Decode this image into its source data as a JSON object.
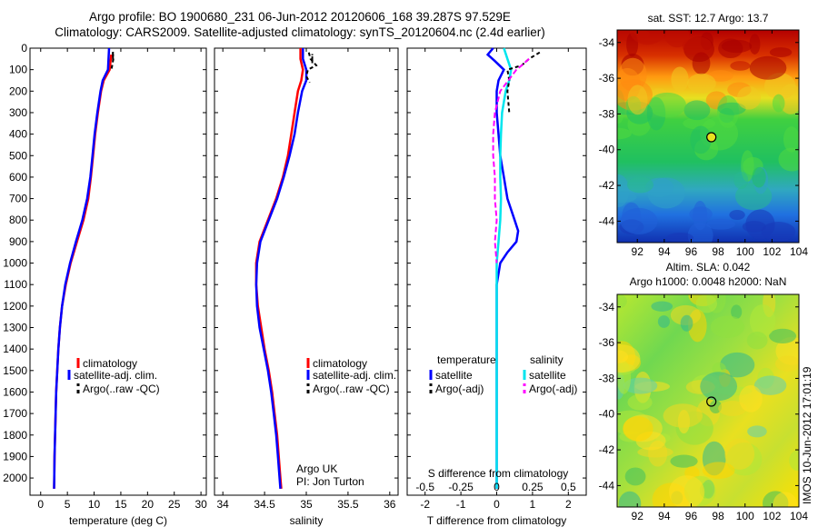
{
  "header": {
    "title_line1": "Argo profile: BO 1900680_231 06-Jun-2012 20120606_168 39.287S 97.529E",
    "title_line2": "Climatology: CARS2009. Satellite-adjusted climatology: synTS_20120604.nc (2.4d earlier)"
  },
  "timestamp": "IMOS 10-Jun-2012 17:01:19",
  "chart_data": [
    {
      "type": "line",
      "xlabel": "temperature (deg C)",
      "ylabel": "",
      "xlim": [
        -2,
        31
      ],
      "ylim": [
        2080,
        0
      ],
      "xticks": [
        0,
        5,
        10,
        15,
        20,
        25,
        30
      ],
      "yticks": [
        0,
        100,
        200,
        300,
        400,
        500,
        600,
        700,
        800,
        900,
        1000,
        1100,
        1200,
        1300,
        1400,
        1500,
        1600,
        1700,
        1800,
        1900,
        2000
      ],
      "legend": [
        "climatology",
        "satellite-adj. clim.",
        "Argo(..raw -QC)"
      ],
      "legend_placement": "lower-right",
      "series": [
        {
          "name": "climatology",
          "color": "#ff0000",
          "dash": "",
          "y": [
            30,
            100,
            150,
            200,
            300,
            400,
            500,
            600,
            700,
            800,
            900,
            1000,
            1100,
            1200,
            1300,
            1400,
            1500,
            1600,
            1700,
            1800,
            1900,
            2000,
            2050
          ],
          "x": [
            13.2,
            12.9,
            11.8,
            11.3,
            10.7,
            10.2,
            9.8,
            9.4,
            8.9,
            8.0,
            6.8,
            5.6,
            4.7,
            4.0,
            3.6,
            3.3,
            3.1,
            2.9,
            2.8,
            2.7,
            2.6,
            2.55,
            2.5
          ]
        },
        {
          "name": "satellite-adj. clim.",
          "color": "#0000ff",
          "dash": "",
          "y": [
            0,
            100,
            150,
            200,
            300,
            400,
            500,
            600,
            700,
            800,
            900,
            1000,
            1100,
            1200,
            1300,
            1400,
            1500,
            1600,
            1700,
            1800,
            1900,
            2000,
            2050
          ],
          "x": [
            12.8,
            12.6,
            11.6,
            11.2,
            10.6,
            10.1,
            9.7,
            9.3,
            8.7,
            7.8,
            6.6,
            5.5,
            4.6,
            4.0,
            3.6,
            3.3,
            3.1,
            2.9,
            2.8,
            2.7,
            2.6,
            2.55,
            2.5
          ]
        },
        {
          "name": "Argo(..raw -QC)",
          "color": "#000000",
          "dash": "4,3",
          "y": [
            20,
            50,
            80,
            100
          ],
          "x": [
            13.5,
            13.6,
            13.4,
            13.2
          ]
        }
      ]
    },
    {
      "type": "line",
      "xlabel": "salinity",
      "ylabel": "",
      "xlim": [
        33.9,
        36.1
      ],
      "ylim": [
        2080,
        0
      ],
      "xticks": [
        34,
        34.5,
        35,
        35.5,
        36
      ],
      "xtick_labels": [
        "34",
        "34.5",
        "35",
        "35.5",
        "36"
      ],
      "legend": [
        "climatology",
        "satellite-adj. clim.",
        "Argo(..raw -QC)"
      ],
      "legend_placement": "lower-right",
      "annotation": [
        "Argo UK",
        "PI: Jon Turton"
      ],
      "series": [
        {
          "name": "climatology",
          "color": "#ff0000",
          "dash": "",
          "y": [
            0,
            50,
            100,
            150,
            200,
            300,
            400,
            500,
            600,
            700,
            800,
            900,
            1000,
            1100,
            1200,
            1300,
            1400,
            1500,
            1600,
            1700,
            1800,
            1900,
            2000,
            2050
          ],
          "x": [
            34.93,
            34.93,
            34.96,
            34.94,
            34.9,
            34.86,
            34.82,
            34.78,
            34.72,
            34.64,
            34.54,
            34.44,
            34.4,
            34.4,
            34.42,
            34.46,
            34.5,
            34.55,
            34.59,
            34.62,
            34.65,
            34.67,
            34.69,
            34.7
          ]
        },
        {
          "name": "satellite-adj. clim.",
          "color": "#0000ff",
          "dash": "",
          "y": [
            0,
            50,
            100,
            150,
            200,
            300,
            400,
            500,
            600,
            700,
            800,
            900,
            1000,
            1100,
            1200,
            1300,
            1400,
            1500,
            1600,
            1700,
            1800,
            1900,
            2000,
            2050
          ],
          "x": [
            34.96,
            34.96,
            35.0,
            35.0,
            34.95,
            34.9,
            34.86,
            34.8,
            34.73,
            34.65,
            34.55,
            34.45,
            34.41,
            34.4,
            34.41,
            34.44,
            34.49,
            34.54,
            34.58,
            34.61,
            34.64,
            34.66,
            34.68,
            34.69
          ]
        },
        {
          "name": "Argo(..raw -QC)",
          "color": "#000000",
          "dash": "4,3",
          "y": [
            20,
            50,
            80,
            100,
            130,
            160
          ],
          "x": [
            35.03,
            35.05,
            35.12,
            35.02,
            35.0,
            35.04
          ]
        }
      ]
    },
    {
      "type": "line",
      "xlabel": "T difference from climatology",
      "top_xlabel": "S difference from climatology",
      "xlim": [
        -2.5,
        2.5
      ],
      "ylim": [
        2080,
        0
      ],
      "xticks": [
        -2,
        -1,
        0,
        1,
        2
      ],
      "top_xticks": [
        "-0.5",
        "-0.25",
        "0",
        "0.25",
        "0.5"
      ],
      "legend": [
        "temperature",
        "satellite",
        "Argo(-adj)",
        "salinity",
        "satellite",
        "Argo(-adj)"
      ],
      "legend_placement": "lower-center",
      "series": [
        {
          "name": "satellite",
          "color": "#0000ff",
          "dash": "",
          "y": [
            0,
            30,
            60,
            100,
            150,
            200,
            300,
            400,
            500,
            600,
            700,
            800,
            850,
            900,
            950,
            1000,
            1100,
            1300,
            1500,
            1700,
            1900,
            2050
          ],
          "x": [
            -0.1,
            -0.25,
            -0.05,
            0.2,
            0.05,
            0.0,
            0.0,
            0.05,
            0.1,
            0.2,
            0.3,
            0.5,
            0.6,
            0.55,
            0.3,
            0.1,
            0.0,
            0.0,
            0.0,
            0.0,
            0.0,
            0.0
          ]
        },
        {
          "name": "satellite",
          "color": "#00e5ee",
          "dash": "",
          "y": [
            0,
            50,
            100,
            150,
            200,
            300,
            400,
            500,
            600,
            700,
            800,
            900,
            1000,
            1100,
            1300,
            1500,
            1700,
            1900,
            2050
          ],
          "x": [
            0.2,
            0.3,
            0.4,
            0.35,
            0.25,
            0.15,
            0.12,
            0.1,
            0.1,
            0.12,
            0.1,
            0.05,
            0.0,
            0.0,
            0.0,
            0.0,
            0.0,
            0.0,
            0.0
          ]
        },
        {
          "name": "Argo(-adj)",
          "color": "#000000",
          "dash": "4,3",
          "y": [
            20,
            50,
            80,
            100,
            150,
            200,
            300
          ],
          "x": [
            1.2,
            0.9,
            0.7,
            0.3,
            0.35,
            0.3,
            0.35
          ]
        },
        {
          "name": "Argo(-adj)",
          "color": "#ff00ff",
          "dash": "6,3",
          "y": [
            50,
            80,
            100,
            200,
            300,
            400,
            500,
            600,
            700,
            800,
            900,
            1000
          ],
          "x": [
            0.9,
            0.7,
            0.55,
            0.1,
            -0.05,
            -0.1,
            -0.1,
            -0.05,
            -0.05,
            0.0,
            -0.05,
            0.0
          ]
        }
      ]
    },
    {
      "type": "heatmap",
      "title": "sat. SST: 12.7 Argo: 13.7",
      "xlim": [
        90.5,
        104
      ],
      "ylim": [
        -45.2,
        -33.3
      ],
      "xticks": [
        92,
        94,
        96,
        98,
        100,
        102,
        104
      ],
      "yticks": [
        -34,
        -36,
        -38,
        -40,
        -42,
        -44
      ],
      "marker": {
        "x": 97.5,
        "y": -39.3
      }
    },
    {
      "type": "heatmap",
      "title": "Altim. SLA: 0.042",
      "subtitle": "Argo h1000: 0.0048 h2000: NaN",
      "xlim": [
        90.5,
        104
      ],
      "ylim": [
        -45.2,
        -33.3
      ],
      "xticks": [
        92,
        94,
        96,
        98,
        100,
        102,
        104
      ],
      "yticks": [
        -34,
        -36,
        -38,
        -40,
        -42,
        -44
      ],
      "marker": {
        "x": 97.5,
        "y": -39.3
      }
    }
  ]
}
